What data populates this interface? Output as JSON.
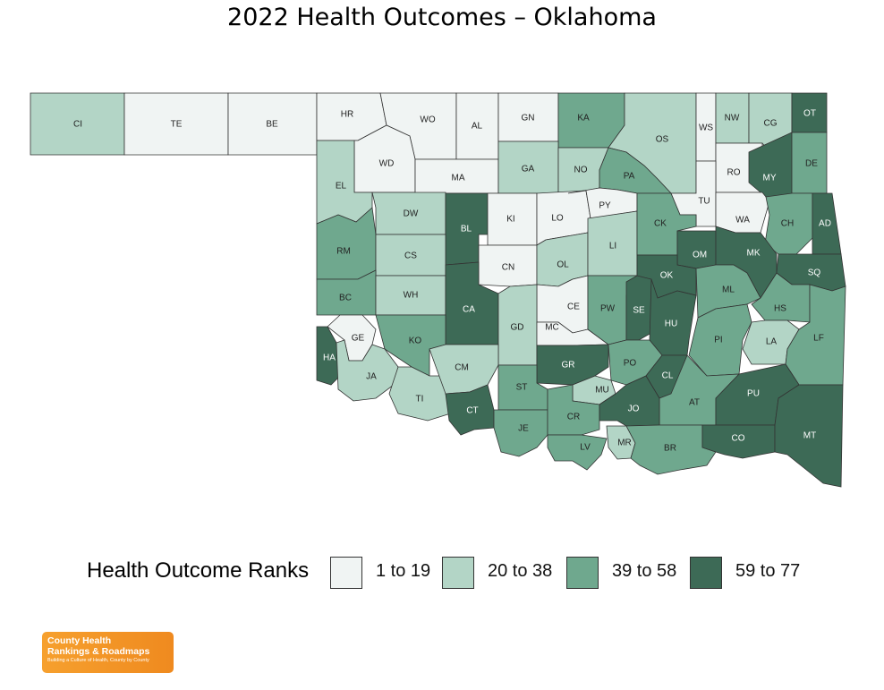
{
  "title": "2022 Health Outcomes – Oklahoma",
  "legend": {
    "title": "Health Outcome Ranks",
    "bins": [
      {
        "label": "1 to 19",
        "color": "#f0f4f3"
      },
      {
        "label": "20 to 38",
        "color": "#b3d5c6"
      },
      {
        "label": "39 to 58",
        "color": "#6fa88e"
      },
      {
        "label": "59 to 77",
        "color": "#3d6a56"
      }
    ]
  },
  "logo": {
    "line1": "County Health",
    "line2": "Rankings & Roadmaps",
    "tagline": "Building a Culture of Health, County by County"
  },
  "map_data": {
    "counties": [
      {
        "abbr": "CI",
        "bin": 1
      },
      {
        "abbr": "TE",
        "bin": 0
      },
      {
        "abbr": "BE",
        "bin": 0
      },
      {
        "abbr": "HR",
        "bin": 0
      },
      {
        "abbr": "WO",
        "bin": 0
      },
      {
        "abbr": "AL",
        "bin": 0
      },
      {
        "abbr": "GN",
        "bin": 0
      },
      {
        "abbr": "KA",
        "bin": 2
      },
      {
        "abbr": "OS",
        "bin": 1
      },
      {
        "abbr": "WS",
        "bin": 0
      },
      {
        "abbr": "NW",
        "bin": 1
      },
      {
        "abbr": "CG",
        "bin": 1
      },
      {
        "abbr": "OT",
        "bin": 3
      },
      {
        "abbr": "WD",
        "bin": 0
      },
      {
        "abbr": "MA",
        "bin": 0
      },
      {
        "abbr": "GA",
        "bin": 1
      },
      {
        "abbr": "NO",
        "bin": 1
      },
      {
        "abbr": "PA",
        "bin": 2
      },
      {
        "abbr": "RO",
        "bin": 0
      },
      {
        "abbr": "MY",
        "bin": 3
      },
      {
        "abbr": "DE",
        "bin": 2
      },
      {
        "abbr": "EL",
        "bin": 1
      },
      {
        "abbr": "DW",
        "bin": 1
      },
      {
        "abbr": "BL",
        "bin": 3
      },
      {
        "abbr": "KI",
        "bin": 0
      },
      {
        "abbr": "LO",
        "bin": 0
      },
      {
        "abbr": "PY",
        "bin": 0
      },
      {
        "abbr": "TU",
        "bin": 0
      },
      {
        "abbr": "WA",
        "bin": 0
      },
      {
        "abbr": "CH",
        "bin": 2
      },
      {
        "abbr": "AD",
        "bin": 3
      },
      {
        "abbr": "RM",
        "bin": 2
      },
      {
        "abbr": "CS",
        "bin": 1
      },
      {
        "abbr": "CN",
        "bin": 0
      },
      {
        "abbr": "OL",
        "bin": 1
      },
      {
        "abbr": "LI",
        "bin": 1
      },
      {
        "abbr": "CK",
        "bin": 2
      },
      {
        "abbr": "OM",
        "bin": 3
      },
      {
        "abbr": "MK",
        "bin": 3
      },
      {
        "abbr": "SQ",
        "bin": 3
      },
      {
        "abbr": "BC",
        "bin": 2
      },
      {
        "abbr": "WH",
        "bin": 1
      },
      {
        "abbr": "CA",
        "bin": 3
      },
      {
        "abbr": "CE",
        "bin": 0
      },
      {
        "abbr": "OK",
        "bin": 3
      },
      {
        "abbr": "ML",
        "bin": 2
      },
      {
        "abbr": "HS",
        "bin": 2
      },
      {
        "abbr": "GE",
        "bin": 0
      },
      {
        "abbr": "KO",
        "bin": 2
      },
      {
        "abbr": "GD",
        "bin": 1
      },
      {
        "abbr": "MC",
        "bin": 0
      },
      {
        "abbr": "PW",
        "bin": 2
      },
      {
        "abbr": "SE",
        "bin": 3
      },
      {
        "abbr": "HU",
        "bin": 3
      },
      {
        "abbr": "PI",
        "bin": 2
      },
      {
        "abbr": "LA",
        "bin": 1
      },
      {
        "abbr": "LF",
        "bin": 2
      },
      {
        "abbr": "HA",
        "bin": 3
      },
      {
        "abbr": "JA",
        "bin": 1
      },
      {
        "abbr": "TI",
        "bin": 1
      },
      {
        "abbr": "CM",
        "bin": 1
      },
      {
        "abbr": "GR",
        "bin": 3
      },
      {
        "abbr": "PO",
        "bin": 2
      },
      {
        "abbr": "ST",
        "bin": 2
      },
      {
        "abbr": "MU",
        "bin": 1
      },
      {
        "abbr": "CL",
        "bin": 3
      },
      {
        "abbr": "AT",
        "bin": 2
      },
      {
        "abbr": "PU",
        "bin": 3
      },
      {
        "abbr": "CT",
        "bin": 3
      },
      {
        "abbr": "JE",
        "bin": 2
      },
      {
        "abbr": "CR",
        "bin": 2
      },
      {
        "abbr": "JO",
        "bin": 3
      },
      {
        "abbr": "LV",
        "bin": 2
      },
      {
        "abbr": "MR",
        "bin": 1
      },
      {
        "abbr": "BR",
        "bin": 2
      },
      {
        "abbr": "CO",
        "bin": 3
      },
      {
        "abbr": "MT",
        "bin": 3
      }
    ]
  }
}
